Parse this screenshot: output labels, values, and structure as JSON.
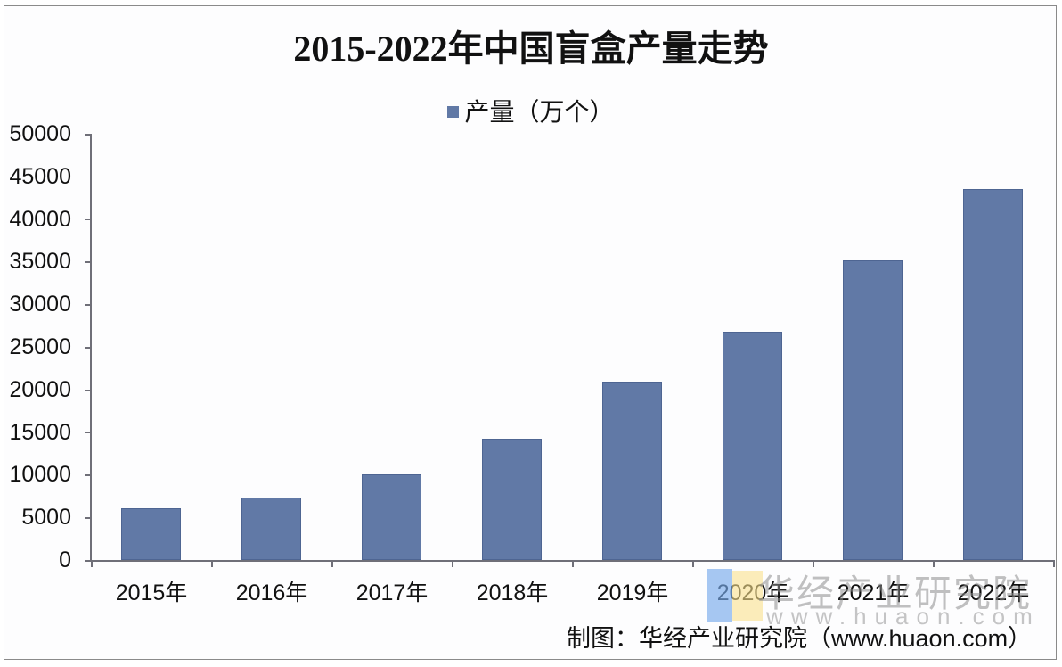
{
  "chart_data": {
    "type": "bar",
    "title": "2015-2022年中国盲盒产量走势",
    "legend": [
      "产量（万个）"
    ],
    "legend_position": "top",
    "categories": [
      "2015年",
      "2016年",
      "2017年",
      "2018年",
      "2019年",
      "2020年",
      "2021年",
      "2022年"
    ],
    "series": [
      {
        "name": "产量（万个）",
        "values": [
          6070,
          7300,
          10040,
          14230,
          20920,
          26780,
          35150,
          43500
        ],
        "color": "#6179a6"
      }
    ],
    "xlabel": "",
    "ylabel": "",
    "ylim": [
      0,
      50000
    ],
    "yticks": [
      "50000",
      "45000",
      "40000",
      "35000",
      "30000",
      "25000",
      "20000",
      "15000",
      "10000",
      "5000",
      "0"
    ],
    "grid": false
  },
  "title": "2015-2022年中国盲盒产量走势",
  "legend_label": "产量（万个）",
  "source": "制图：华经产业研究院（www.huaon.com）",
  "watermark": {
    "text": "华经产业研究院",
    "url": "www.huaon.com"
  }
}
